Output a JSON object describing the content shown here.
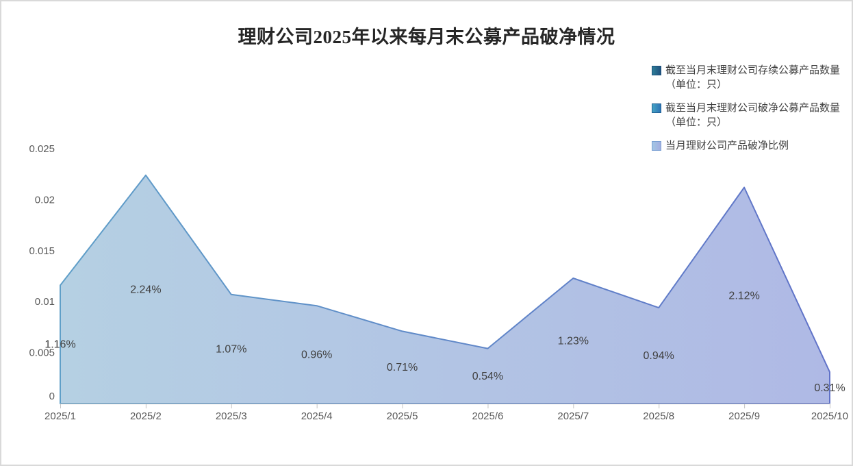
{
  "title": "理财公司2025年以来每月末公募产品破净情况",
  "legend": {
    "items": [
      {
        "label": "截至当月末理财公司存续公募产品数量（单位：只）",
        "swatch_from": "#2e7e98",
        "swatch_to": "#20527e",
        "swatch_border": "#1c4f7a"
      },
      {
        "label": "截至当月末理财公司破净公募产品数量（单位：只）",
        "swatch_from": "#45a3c4",
        "swatch_to": "#2e74b5",
        "swatch_border": "#1f5e92"
      },
      {
        "label": "当月理财公司产品破净比例",
        "swatch_from": "#a3c6e4",
        "swatch_to": "#a3aee0",
        "swatch_border": "#7ca1d4"
      }
    ]
  },
  "chart_data": {
    "type": "area",
    "title": "理财公司2025年以来每月末公募产品破净情况",
    "categories": [
      "2025/1",
      "2025/2",
      "2025/3",
      "2025/4",
      "2025/5",
      "2025/6",
      "2025/7",
      "2025/8",
      "2025/9",
      "2025/10"
    ],
    "series": [
      {
        "name": "截至当月末理财公司存续公募产品数量（单位：只）"
      },
      {
        "name": "截至当月末理财公司破净公募产品数量（单位：只）"
      },
      {
        "name": "当月理财公司产品破净比例",
        "values": [
          0.0116,
          0.0224,
          0.0107,
          0.0096,
          0.0071,
          0.0054,
          0.0123,
          0.0094,
          0.0212,
          0.0031
        ],
        "data_labels": [
          "1.16%",
          "2.24%",
          "1.07%",
          "0.96%",
          "0.71%",
          "0.54%",
          "1.23%",
          "0.94%",
          "2.12%",
          "0.31%"
        ]
      }
    ],
    "ylim": [
      0,
      0.025
    ],
    "ytick_labels": [
      "0",
      "0.005",
      "0.01",
      "0.015",
      "0.02",
      "0.025"
    ],
    "xlabel": "",
    "ylabel": "",
    "grid": false,
    "legend_position": "top-right",
    "colors": {
      "area_fill_from": "#b5d0e3",
      "area_fill_to": "#afb9e5",
      "area_stroke_from": "#5f9fc8",
      "area_stroke_to": "#6072c8",
      "axis_line": "#c3c3c3",
      "tick_label": "#595959",
      "data_label": "#404040",
      "title_color": "#262626",
      "frame_border": "#d9d9d9"
    }
  }
}
